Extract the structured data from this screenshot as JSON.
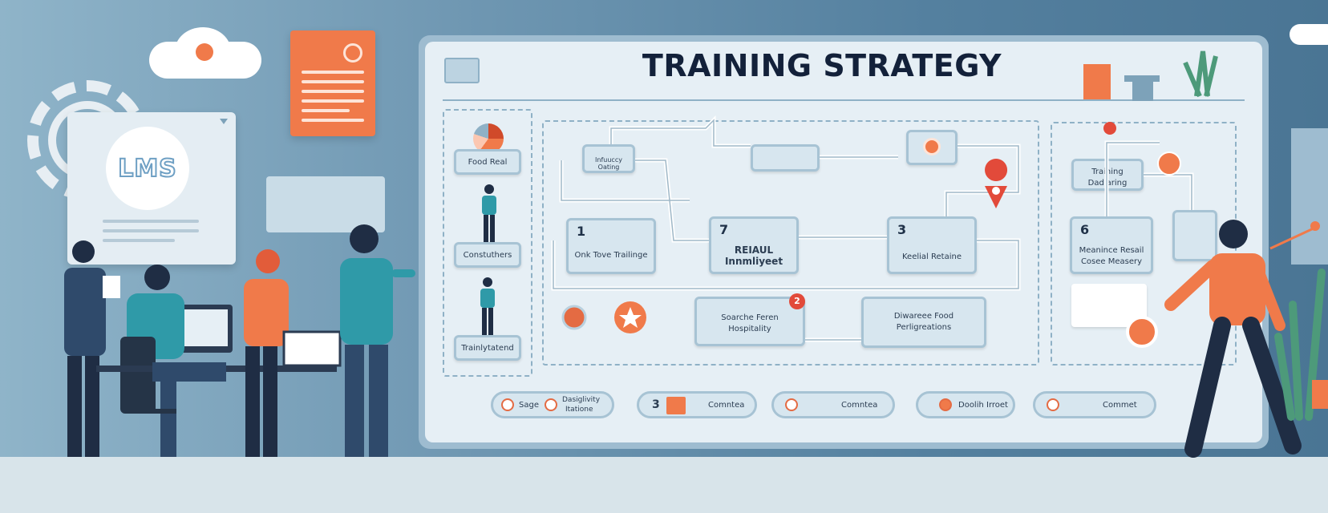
{
  "title": "TRAINING STRATEGY",
  "lms_label": "LMS",
  "left_column": [
    {
      "label": "Food Real"
    },
    {
      "label": "Constuthers"
    },
    {
      "label": "Trainlytatend"
    }
  ],
  "nodes": {
    "n_top_small": "Infuuccy Oating",
    "n1": {
      "num": "1",
      "label": "Onk Tove Trailinge"
    },
    "n7": {
      "num": "7",
      "label1": "REIAUL",
      "label2": "Innmliyeet"
    },
    "n3": {
      "num": "3",
      "label": "Keelial Retaine"
    },
    "n_search": {
      "label1": "Soarche Feren",
      "label2": "Hospitality"
    },
    "n_badge2": "2",
    "n_diverse": {
      "label1": "Diwareee Food",
      "label2": "Perligreations"
    },
    "n_training": {
      "label1": "Training",
      "label2": "Dadiaring"
    },
    "n6": {
      "num": "6",
      "label1": "Meanince Resail",
      "label2": "Cosee Measery"
    }
  },
  "pills": [
    {
      "a": "Sage",
      "b1": "Dasiglivity",
      "b2": "Itatione"
    },
    {
      "num": "3",
      "b": "Comntea"
    },
    {
      "b": "Comntea"
    },
    {
      "b": "Doolih Irroet"
    },
    {
      "b": "Commet"
    }
  ],
  "colors": {
    "accent": "#f07a4a",
    "board": "#e6eff5",
    "node": "#d7e6ef",
    "title": "#13213a"
  }
}
